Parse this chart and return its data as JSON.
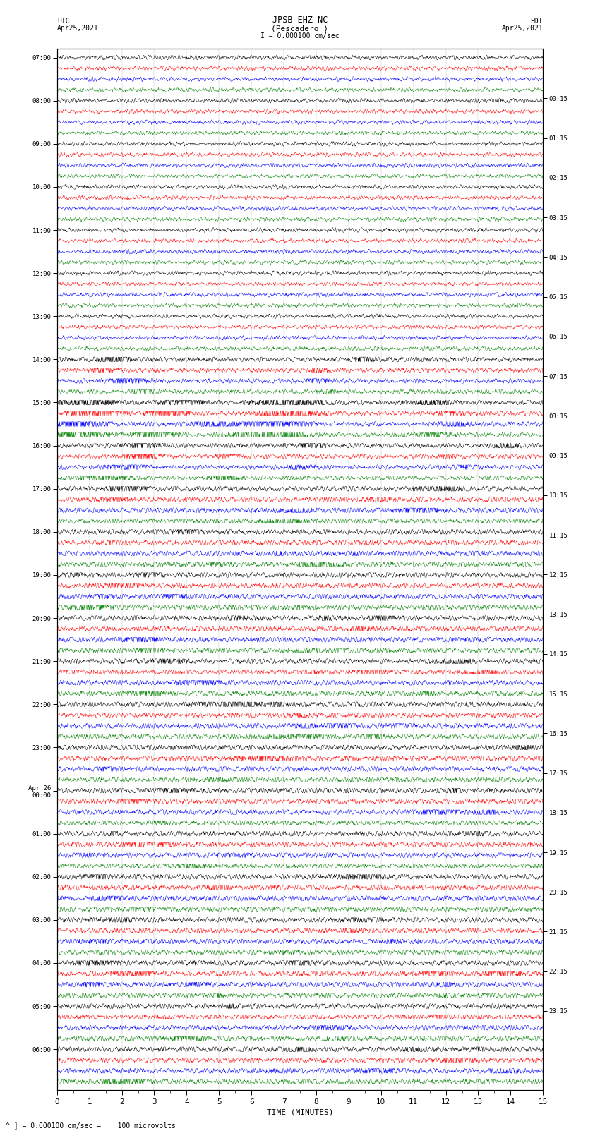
{
  "title_line1": "JPSB EHZ NC",
  "title_line2": "(Pescadero )",
  "scale_text": "I = 0.000100 cm/sec",
  "left_header": "UTC\nApr25,2021",
  "right_header": "PDT\nApr25,2021",
  "bottom_label": "TIME (MINUTES)",
  "bottom_note": "^ ] = 0.000100 cm/sec =    100 microvolts",
  "colors": [
    "black",
    "red",
    "blue",
    "green"
  ],
  "bg_color": "white",
  "fig_width": 8.5,
  "fig_height": 16.13,
  "row_labels_utc": [
    "07:00",
    "",
    "",
    "",
    "08:00",
    "",
    "",
    "",
    "09:00",
    "",
    "",
    "",
    "10:00",
    "",
    "",
    "",
    "11:00",
    "",
    "",
    "",
    "12:00",
    "",
    "",
    "",
    "13:00",
    "",
    "",
    "",
    "14:00",
    "",
    "",
    "",
    "15:00",
    "",
    "",
    "",
    "16:00",
    "",
    "",
    "",
    "17:00",
    "",
    "",
    "",
    "18:00",
    "",
    "",
    "",
    "19:00",
    "",
    "",
    "",
    "20:00",
    "",
    "",
    "",
    "21:00",
    "",
    "",
    "",
    "22:00",
    "",
    "",
    "",
    "23:00",
    "",
    "",
    "",
    "Apr 26\n00:00",
    "",
    "",
    "",
    "01:00",
    "",
    "",
    "",
    "02:00",
    "",
    "",
    "",
    "03:00",
    "",
    "",
    "",
    "04:00",
    "",
    "",
    "",
    "05:00",
    "",
    "",
    "",
    "06:00",
    "",
    "",
    ""
  ],
  "row_labels_pdt": [
    "00:15",
    "",
    "",
    "",
    "01:15",
    "",
    "",
    "",
    "02:15",
    "",
    "",
    "",
    "03:15",
    "",
    "",
    "",
    "04:15",
    "",
    "",
    "",
    "05:15",
    "",
    "",
    "",
    "06:15",
    "",
    "",
    "",
    "07:15",
    "",
    "",
    "",
    "08:15",
    "",
    "",
    "",
    "09:15",
    "",
    "",
    "",
    "10:15",
    "",
    "",
    "",
    "11:15",
    "",
    "",
    "",
    "12:15",
    "",
    "",
    "",
    "13:15",
    "",
    "",
    "",
    "14:15",
    "",
    "",
    "",
    "15:15",
    "",
    "",
    "",
    "16:15",
    "",
    "",
    "",
    "17:15",
    "",
    "",
    "",
    "18:15",
    "",
    "",
    "",
    "19:15",
    "",
    "",
    "",
    "20:15",
    "",
    "",
    "",
    "21:15",
    "",
    "",
    "",
    "22:15",
    "",
    "",
    "",
    "23:15",
    "",
    "",
    ""
  ]
}
